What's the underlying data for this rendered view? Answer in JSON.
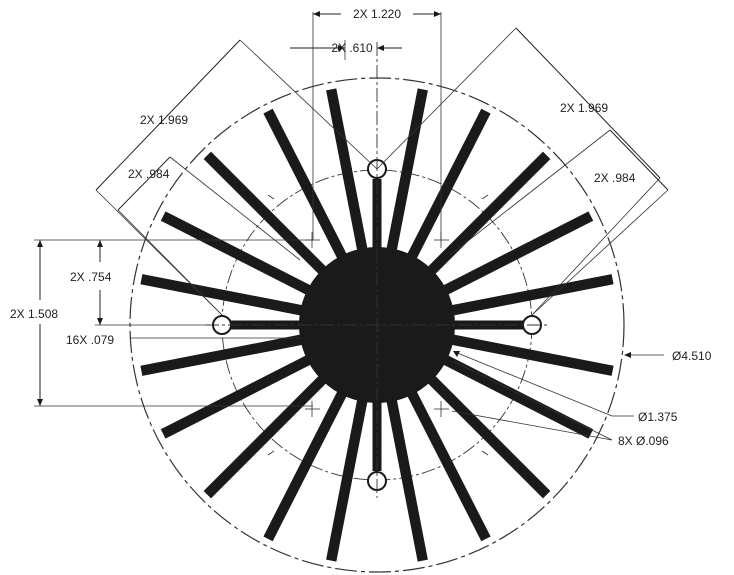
{
  "drawing": {
    "dimensions": {
      "fin_spacing_outer_top": "2X 1.220",
      "fin_spacing_inner_top": "2X .610",
      "diag_outer_left": "2X 1.969",
      "diag_inner_left": "2X .984",
      "diag_outer_right": "2X 1.969",
      "diag_inner_right": "2X .984",
      "vert_inner": "2X .754",
      "vert_outer": "2X 1.508",
      "fin_thickness": "16X .079",
      "outer_diameter": "Ø4.510",
      "core_diameter": "Ø1.375",
      "hole_diameter": "8X Ø.096"
    }
  }
}
